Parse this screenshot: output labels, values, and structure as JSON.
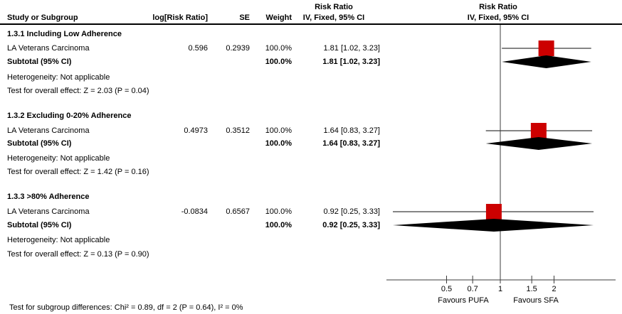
{
  "header": {
    "col_study": "Study or Subgroup",
    "col_log_rr": "log[Risk Ratio]",
    "col_se": "SE",
    "col_weight": "Weight",
    "col_effect_line1": "Risk Ratio",
    "col_effect_line2": "IV, Fixed, 95% CI",
    "col_plot_line1": "Risk Ratio",
    "col_plot_line2": "IV, Fixed, 95% CI"
  },
  "footer": {
    "subgroup_diff_test": "Test for subgroup differences: Chi² = 0.89, df = 2 (P = 0.64), I² = 0%"
  },
  "chart_data": {
    "type": "forest",
    "scale": "log",
    "null_value": 1,
    "x_ticks": [
      "0.5",
      "0.7",
      "1",
      "1.5",
      "2"
    ],
    "x_tick_values": [
      0.5,
      0.7,
      1,
      1.5,
      2
    ],
    "favours_left": "Favours PUFA",
    "favours_right": "Favours SFA",
    "marker_color": "#cc0000",
    "line_color": "#3c3c3c",
    "diamond_color": "#000000",
    "subgroups": [
      {
        "title": "1.3.1 Including Low Adherence",
        "study": {
          "name": "LA Veterans Carcinoma",
          "log_rr": "0.596",
          "se": "0.2939",
          "weight": "100.0%",
          "weight_pct": 100.0,
          "effect": "1.81 [1.02, 3.23]",
          "rr": 1.81,
          "ci_low": 1.02,
          "ci_high": 3.23
        },
        "subtotal": {
          "label": "Subtotal (95% CI)",
          "weight": "100.0%",
          "effect": "1.81 [1.02, 3.23]",
          "rr": 1.81,
          "ci_low": 1.02,
          "ci_high": 3.23
        },
        "heterogeneity": "Heterogeneity: Not applicable",
        "overall_effect_test": "Test for overall effect: Z = 2.03 (P = 0.04)"
      },
      {
        "title": "1.3.2 Excluding 0-20% Adherence",
        "study": {
          "name": "LA Veterans Carcinoma",
          "log_rr": "0.4973",
          "se": "0.3512",
          "weight": "100.0%",
          "weight_pct": 100.0,
          "effect": "1.64 [0.83, 3.27]",
          "rr": 1.64,
          "ci_low": 0.83,
          "ci_high": 3.27
        },
        "subtotal": {
          "label": "Subtotal (95% CI)",
          "weight": "100.0%",
          "effect": "1.64 [0.83, 3.27]",
          "rr": 1.64,
          "ci_low": 0.83,
          "ci_high": 3.27
        },
        "heterogeneity": "Heterogeneity: Not applicable",
        "overall_effect_test": "Test for overall effect: Z = 1.42 (P = 0.16)"
      },
      {
        "title": "1.3.3 >80% Adherence",
        "study": {
          "name": "LA Veterans Carcinoma",
          "log_rr": "-0.0834",
          "se": "0.6567",
          "weight": "100.0%",
          "weight_pct": 100.0,
          "effect": "0.92 [0.25, 3.33]",
          "rr": 0.92,
          "ci_low": 0.25,
          "ci_high": 3.33
        },
        "subtotal": {
          "label": "Subtotal (95% CI)",
          "weight": "100.0%",
          "effect": "0.92 [0.25, 3.33]",
          "rr": 0.92,
          "ci_low": 0.25,
          "ci_high": 3.33
        },
        "heterogeneity": "Heterogeneity: Not applicable",
        "overall_effect_test": "Test for overall effect: Z = 0.13 (P = 0.90)"
      }
    ]
  }
}
